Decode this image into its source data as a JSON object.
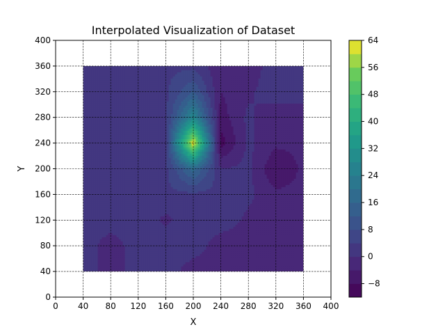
{
  "chart_data": {
    "type": "heatmap",
    "subtype": "filled-contour",
    "title": "Interpolated Visualization of Dataset",
    "xlabel": "X",
    "ylabel": "Y",
    "xlim": [
      0,
      400
    ],
    "ylim": [
      0,
      400
    ],
    "x_ticks": [
      0,
      40,
      80,
      120,
      160,
      200,
      240,
      280,
      320,
      360,
      400
    ],
    "y_ticks": [
      0,
      40,
      80,
      120,
      160,
      200,
      240,
      280,
      320,
      360,
      400
    ],
    "grid": true,
    "grid_style": "dashed",
    "colormap": "viridis",
    "data_extent": {
      "x": [
        40,
        360
      ],
      "y": [
        40,
        360
      ]
    },
    "colorbar": {
      "min": -12,
      "max": 64,
      "level_step": 4,
      "ticks": [
        -8,
        0,
        8,
        16,
        24,
        32,
        40,
        48,
        56,
        64
      ],
      "tick_labels": [
        "−8",
        "0",
        "8",
        "16",
        "24",
        "32",
        "40",
        "48",
        "56",
        "64"
      ]
    },
    "x": [
      40,
      80,
      120,
      160,
      200,
      240,
      280,
      320,
      360
    ],
    "y": [
      40,
      80,
      120,
      160,
      200,
      240,
      280,
      320,
      360
    ],
    "z": [
      [
        3,
        -3,
        3,
        3,
        -3,
        -3,
        -3,
        -3,
        -3
      ],
      [
        3,
        -3,
        3,
        3,
        3,
        -3,
        -3,
        -3,
        -3
      ],
      [
        3,
        3,
        3,
        -1,
        3,
        3,
        -1,
        -3,
        -3
      ],
      [
        3,
        3,
        3,
        3,
        3,
        3,
        1,
        -3,
        -3
      ],
      [
        3,
        3,
        3,
        3,
        18,
        0,
        1,
        -8,
        -3
      ],
      [
        3,
        3,
        3,
        3,
        64,
        -10,
        1,
        -3,
        -3
      ],
      [
        3,
        3,
        3,
        3,
        28,
        -6,
        1,
        -3,
        -3
      ],
      [
        3,
        3,
        3,
        3,
        12,
        -4,
        -1,
        3,
        3
      ],
      [
        3,
        3,
        3,
        3,
        3,
        -3,
        -3,
        3,
        3
      ]
    ]
  }
}
